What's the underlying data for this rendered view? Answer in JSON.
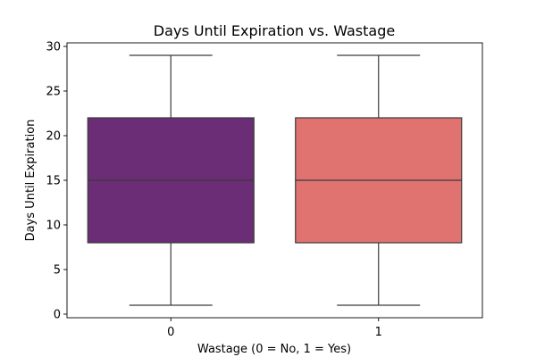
{
  "chart_data": {
    "type": "box",
    "title": "Days Until Expiration vs. Wastage",
    "xlabel": "Wastage (0 = No, 1 = Yes)",
    "ylabel": "Days Until Expiration",
    "ylim": [
      -0.4,
      30.4
    ],
    "yticks": [
      0,
      5,
      10,
      15,
      20,
      25,
      30
    ],
    "grid": false,
    "categories": [
      "0",
      "1"
    ],
    "boxes": [
      {
        "category": "0",
        "min": 1,
        "q1": 8,
        "median": 15,
        "q3": 22,
        "max": 29,
        "color": "#6b2d75"
      },
      {
        "category": "1",
        "min": 1,
        "q1": 8,
        "median": 15,
        "q3": 22,
        "max": 29,
        "color": "#e07370"
      }
    ]
  }
}
